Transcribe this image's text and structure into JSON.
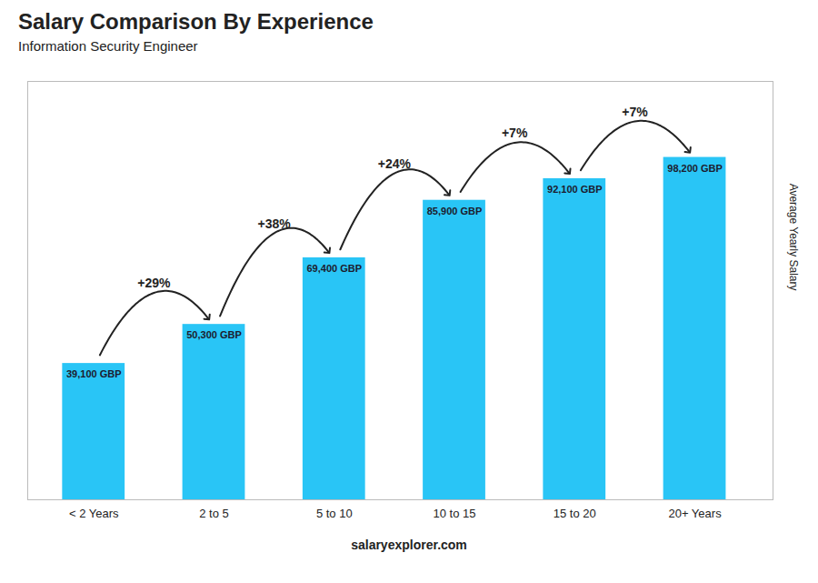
{
  "chart_data": {
    "type": "bar",
    "title": "Salary Comparison By Experience",
    "subtitle": "Information Security Engineer",
    "y_label": "Average Yearly Salary",
    "caption": "salaryexplorer.com",
    "categories": [
      "< 2 Years",
      "2 to 5",
      "5 to 10",
      "10 to 15",
      "15 to 20",
      "20+ Years"
    ],
    "values": [
      39100,
      50300,
      69400,
      85900,
      92100,
      98200
    ],
    "value_labels": [
      "39,100 GBP",
      "50,300 GBP",
      "69,400 GBP",
      "85,900 GBP",
      "92,100 GBP",
      "98,200 GBP"
    ],
    "data_labels": true,
    "annotations": [
      "+29%",
      "+38%",
      "+24%",
      "+7%",
      "+7%"
    ],
    "color": "#29c5f6",
    "ylim": [
      0,
      120000
    ],
    "tick_labels": "x",
    "grid": false
  }
}
